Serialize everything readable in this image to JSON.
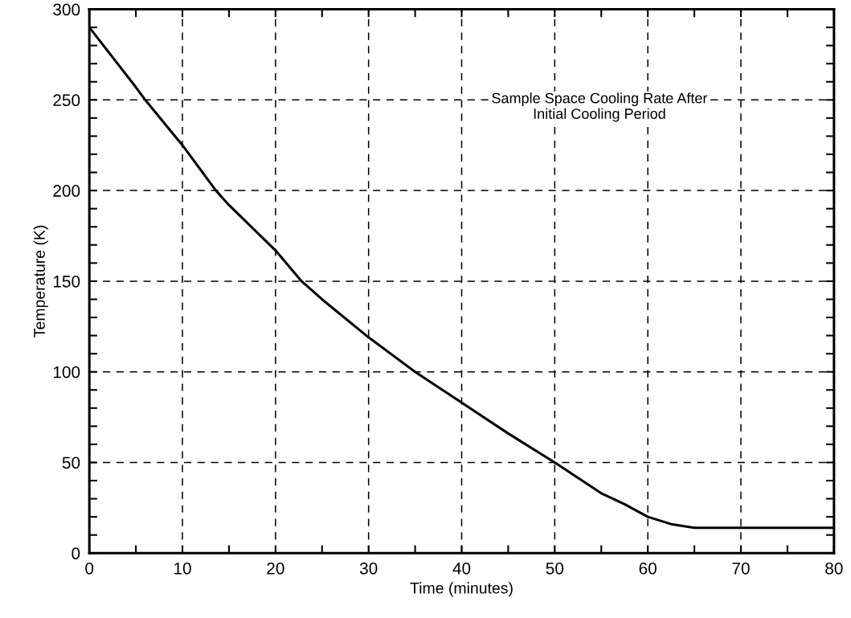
{
  "chart_data": {
    "type": "line",
    "xlabel": "Time (minutes)",
    "ylabel": "Temperature (K)",
    "annotations": [
      "Sample Space Cooling Rate After\nInitial Cooling Period"
    ],
    "x": [
      0,
      5,
      6,
      10,
      13.6,
      15,
      20,
      22.8,
      25,
      30,
      35,
      40,
      45,
      50,
      55,
      57.5,
      60,
      62.5,
      65,
      67.5,
      70,
      75,
      80
    ],
    "series": [
      {
        "color": "#000000",
        "values": [
          290,
          257,
          250,
          225,
          200,
          192,
          167,
          150,
          140,
          119,
          100,
          83,
          66,
          50,
          33,
          27,
          20,
          16,
          14,
          14,
          14,
          14,
          14
        ]
      }
    ],
    "xlim": [
      0,
      80
    ],
    "ylim": [
      0,
      300
    ],
    "xticks": [
      0,
      {
        "value": 5,
        "label": null
      },
      10,
      {
        "value": 15,
        "label": null
      },
      20,
      {
        "value": 25,
        "label": null
      },
      30,
      {
        "value": 35,
        "label": null
      },
      40,
      {
        "value": 45,
        "label": null
      },
      50,
      {
        "value": 55,
        "label": null
      },
      60,
      {
        "value": 65,
        "label": null
      },
      70,
      {
        "value": 75,
        "label": null
      },
      80
    ],
    "yticks": [
      0,
      {
        "value": 10,
        "label": null
      },
      {
        "value": 20,
        "label": null
      },
      {
        "value": 30,
        "label": null
      },
      {
        "value": 40,
        "label": null
      },
      50,
      {
        "value": 60,
        "label": null
      },
      {
        "value": 70,
        "label": null
      },
      {
        "value": 80,
        "label": null
      },
      {
        "value": 90,
        "label": null
      },
      100,
      {
        "value": 110,
        "label": null
      },
      {
        "value": 120,
        "label": null
      },
      {
        "value": 130,
        "label": null
      },
      {
        "value": 140,
        "label": null
      },
      150,
      {
        "value": 160,
        "label": null
      },
      {
        "value": 170,
        "label": null
      },
      {
        "value": 180,
        "label": null
      },
      {
        "value": 190,
        "label": null
      },
      200,
      {
        "value": 210,
        "label": null
      },
      {
        "value": 220,
        "label": null
      },
      {
        "value": 230,
        "label": null
      },
      {
        "value": 240,
        "label": null
      },
      250,
      {
        "value": 260,
        "label": null
      },
      {
        "value": 270,
        "label": null
      },
      {
        "value": 280,
        "label": null
      },
      {
        "value": 290,
        "label": null
      },
      300
    ],
    "grid": true,
    "legend": false,
    "marker": "none",
    "line_style": "solid"
  }
}
